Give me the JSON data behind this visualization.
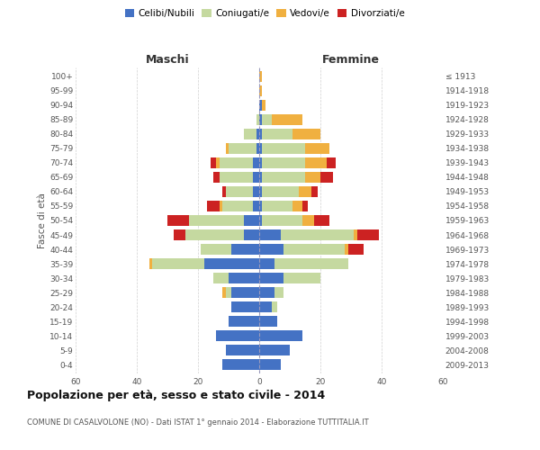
{
  "age_groups": [
    "0-4",
    "5-9",
    "10-14",
    "15-19",
    "20-24",
    "25-29",
    "30-34",
    "35-39",
    "40-44",
    "45-49",
    "50-54",
    "55-59",
    "60-64",
    "65-69",
    "70-74",
    "75-79",
    "80-84",
    "85-89",
    "90-94",
    "95-99",
    "100+"
  ],
  "birth_years": [
    "2009-2013",
    "2004-2008",
    "1999-2003",
    "1994-1998",
    "1989-1993",
    "1984-1988",
    "1979-1983",
    "1974-1978",
    "1969-1973",
    "1964-1968",
    "1959-1963",
    "1954-1958",
    "1949-1953",
    "1944-1948",
    "1939-1943",
    "1934-1938",
    "1929-1933",
    "1924-1928",
    "1919-1923",
    "1914-1918",
    "≤ 1913"
  ],
  "colors": {
    "celibi": "#4472c4",
    "coniugati": "#c5d9a0",
    "vedovi": "#f0b040",
    "divorziati": "#cc2222",
    "bg": "#ffffff"
  },
  "maschi": {
    "celibi": [
      12,
      11,
      14,
      10,
      9,
      9,
      10,
      18,
      9,
      5,
      5,
      2,
      2,
      2,
      2,
      1,
      1,
      0,
      0,
      0,
      0
    ],
    "coniugati": [
      0,
      0,
      0,
      0,
      0,
      2,
      5,
      17,
      10,
      19,
      18,
      10,
      9,
      11,
      11,
      9,
      4,
      1,
      0,
      0,
      0
    ],
    "vedovi": [
      0,
      0,
      0,
      0,
      0,
      1,
      0,
      1,
      0,
      0,
      0,
      1,
      0,
      0,
      1,
      1,
      0,
      0,
      0,
      0,
      0
    ],
    "divorziati": [
      0,
      0,
      0,
      0,
      0,
      0,
      0,
      0,
      0,
      4,
      7,
      4,
      1,
      2,
      2,
      0,
      0,
      0,
      0,
      0,
      0
    ]
  },
  "femmine": {
    "celibi": [
      7,
      10,
      14,
      6,
      4,
      5,
      8,
      5,
      8,
      7,
      1,
      1,
      1,
      1,
      1,
      1,
      1,
      1,
      1,
      0,
      0
    ],
    "coniugati": [
      0,
      0,
      0,
      0,
      2,
      3,
      12,
      24,
      20,
      24,
      13,
      10,
      12,
      14,
      14,
      14,
      10,
      3,
      0,
      0,
      0
    ],
    "vedovi": [
      0,
      0,
      0,
      0,
      0,
      0,
      0,
      0,
      1,
      1,
      4,
      3,
      4,
      5,
      7,
      8,
      9,
      10,
      1,
      1,
      1
    ],
    "divorziati": [
      0,
      0,
      0,
      0,
      0,
      0,
      0,
      0,
      5,
      7,
      5,
      2,
      2,
      4,
      3,
      0,
      0,
      0,
      0,
      0,
      0
    ]
  },
  "xlim": 60,
  "title": "Popolazione per età, sesso e stato civile - 2014",
  "subtitle": "COMUNE DI CASALVOLONE (NO) - Dati ISTAT 1° gennaio 2014 - Elaborazione TUTTITALIA.IT",
  "xlabel_left": "Maschi",
  "xlabel_right": "Femmine",
  "ylabel_left": "Fasce di età",
  "legend_labels": [
    "Celibi/Nubili",
    "Coniugati/e",
    "Vedovi/e",
    "Divorziati/e"
  ]
}
